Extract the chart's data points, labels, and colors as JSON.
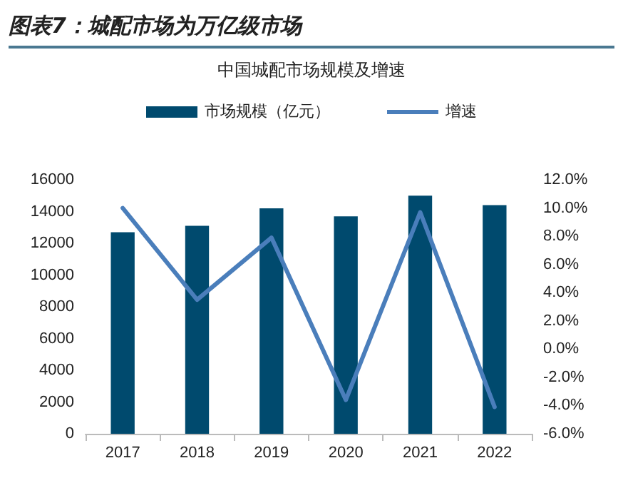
{
  "chart_data": {
    "type": "bar",
    "title": "图表7：城配市场为万亿级市场",
    "subtitle": "中国城配市场规模及增速",
    "categories": [
      "2017",
      "2018",
      "2019",
      "2020",
      "2021",
      "2022"
    ],
    "series": [
      {
        "name": "市场规模（亿元）",
        "color": "#004a6e",
        "values": [
          12700,
          13100,
          14200,
          13700,
          15000,
          14400
        ]
      },
      {
        "name": "增速",
        "type": "line",
        "axis": "y2",
        "color": "#4a7ebb",
        "values": [
          10.0,
          3.5,
          7.9,
          -3.6,
          9.7,
          -4.1
        ]
      }
    ],
    "ylim": [
      0,
      16000
    ],
    "yticks": [
      0,
      2000,
      4000,
      6000,
      8000,
      10000,
      12000,
      14000,
      16000
    ],
    "y2lim": [
      -6,
      12
    ],
    "y2ticks": [
      {
        "value": -6,
        "label": "-6.0%"
      },
      {
        "value": -4,
        "label": "-4.0%"
      },
      {
        "value": -2,
        "label": "-2.0%"
      },
      {
        "value": 0,
        "label": "0.0%"
      },
      {
        "value": 2,
        "label": "2.0%"
      },
      {
        "value": 4,
        "label": "4.0%"
      },
      {
        "value": 6,
        "label": "6.0%"
      },
      {
        "value": 8,
        "label": "8.0%"
      },
      {
        "value": 10,
        "label": "10.0%"
      },
      {
        "value": 12,
        "label": "12.0%"
      }
    ],
    "grid": false,
    "legend": "top",
    "marker": "none",
    "line_style": "solid"
  }
}
